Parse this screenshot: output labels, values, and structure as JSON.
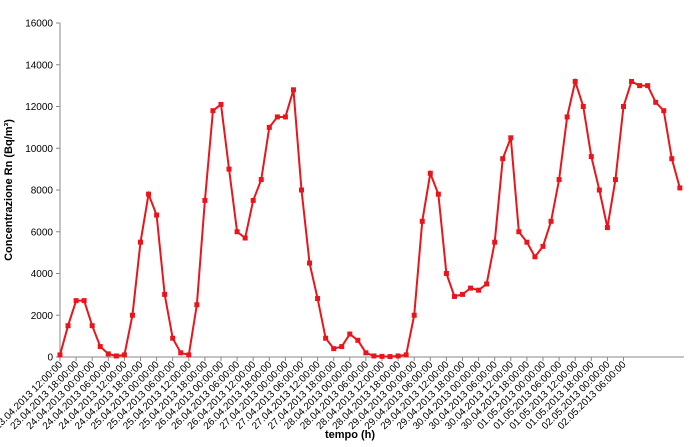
{
  "chart_data": {
    "type": "line",
    "x_label": "tempo (h)",
    "y_label": "Concentrazione Rn (Bq/m³)",
    "categories": [
      "23.04.2013 12:00:00",
      null,
      "23.04.2013 18:00:00",
      null,
      "24.04.2013 00:00:00",
      null,
      "24.04.2013 06:00:00",
      null,
      "24.04.2013 12:00:00",
      null,
      "24.04.2013 18:00:00",
      null,
      "25.04.2013 00:00:00",
      null,
      "25.04.2013 06:00:00",
      null,
      "25.04.2013 12:00:00",
      null,
      "25.04.2013 18:00:00",
      null,
      "26.04.2013 00:00:00",
      null,
      "26.04.2013 06:00:00",
      null,
      "26.04.2013 12:00:00",
      null,
      "26.04.2013 18:00:00",
      null,
      "27.04.2013 00:00:00",
      null,
      "27.04.2013 06:00:00",
      null,
      "27.04.2013 12:00:00",
      null,
      "27.04.2013 18:00:00",
      null,
      "28.04.2013 00:00:00",
      null,
      "28.04.2013 06:00:00",
      null,
      "28.04.2013 12:00:00",
      null,
      "28.04.2013 18:00:00",
      null,
      "29.04.2013 00:00:00",
      null,
      "29.04.2013 06:00:00",
      null,
      "29.04.2013 12:00:00",
      null,
      "29.04.2013 18:00:00",
      null,
      "30.04.2013 00:00:00",
      null,
      "30.04.2013 06:00:00",
      null,
      "30.04.2013 12:00:00",
      null,
      "30.04.2013 18:00:00",
      null,
      "01.05.2013 00:00:00",
      null,
      "01.05.2013 06:00:00",
      null,
      "01.05.2013 12:00:00",
      null,
      "01.05.2013 18:00:00",
      null,
      "02.05.2013 00:00:00",
      null,
      "02.05.2013 06:00:00",
      null,
      null,
      null,
      null,
      null,
      null,
      null
    ],
    "series": [
      {
        "name": "Rn",
        "color": "#e8161b",
        "values": [
          100,
          1500,
          2700,
          2700,
          1500,
          500,
          150,
          50,
          100,
          2000,
          5500,
          7800,
          6800,
          3000,
          900,
          200,
          100,
          2500,
          7500,
          11800,
          12100,
          9000,
          6000,
          5700,
          7500,
          8500,
          11000,
          11500,
          11500,
          12800,
          8000,
          4500,
          2800,
          900,
          400,
          500,
          1100,
          800,
          200,
          50,
          30,
          20,
          50,
          100,
          2000,
          6500,
          8800,
          7800,
          4000,
          2900,
          3000,
          3300,
          3200,
          3500,
          5500,
          9500,
          10500,
          6000,
          5500,
          4800,
          5300,
          6500,
          8500,
          11500,
          13200,
          12000,
          9600,
          8000,
          6200,
          8500,
          12000,
          13200,
          13000,
          13000,
          12200,
          11800,
          9500,
          8100
        ]
      }
    ],
    "ylim": [
      0,
      16000
    ],
    "yticks": [
      0,
      2000,
      4000,
      6000,
      8000,
      10000,
      12000,
      14000,
      16000
    ],
    "grid": false
  }
}
